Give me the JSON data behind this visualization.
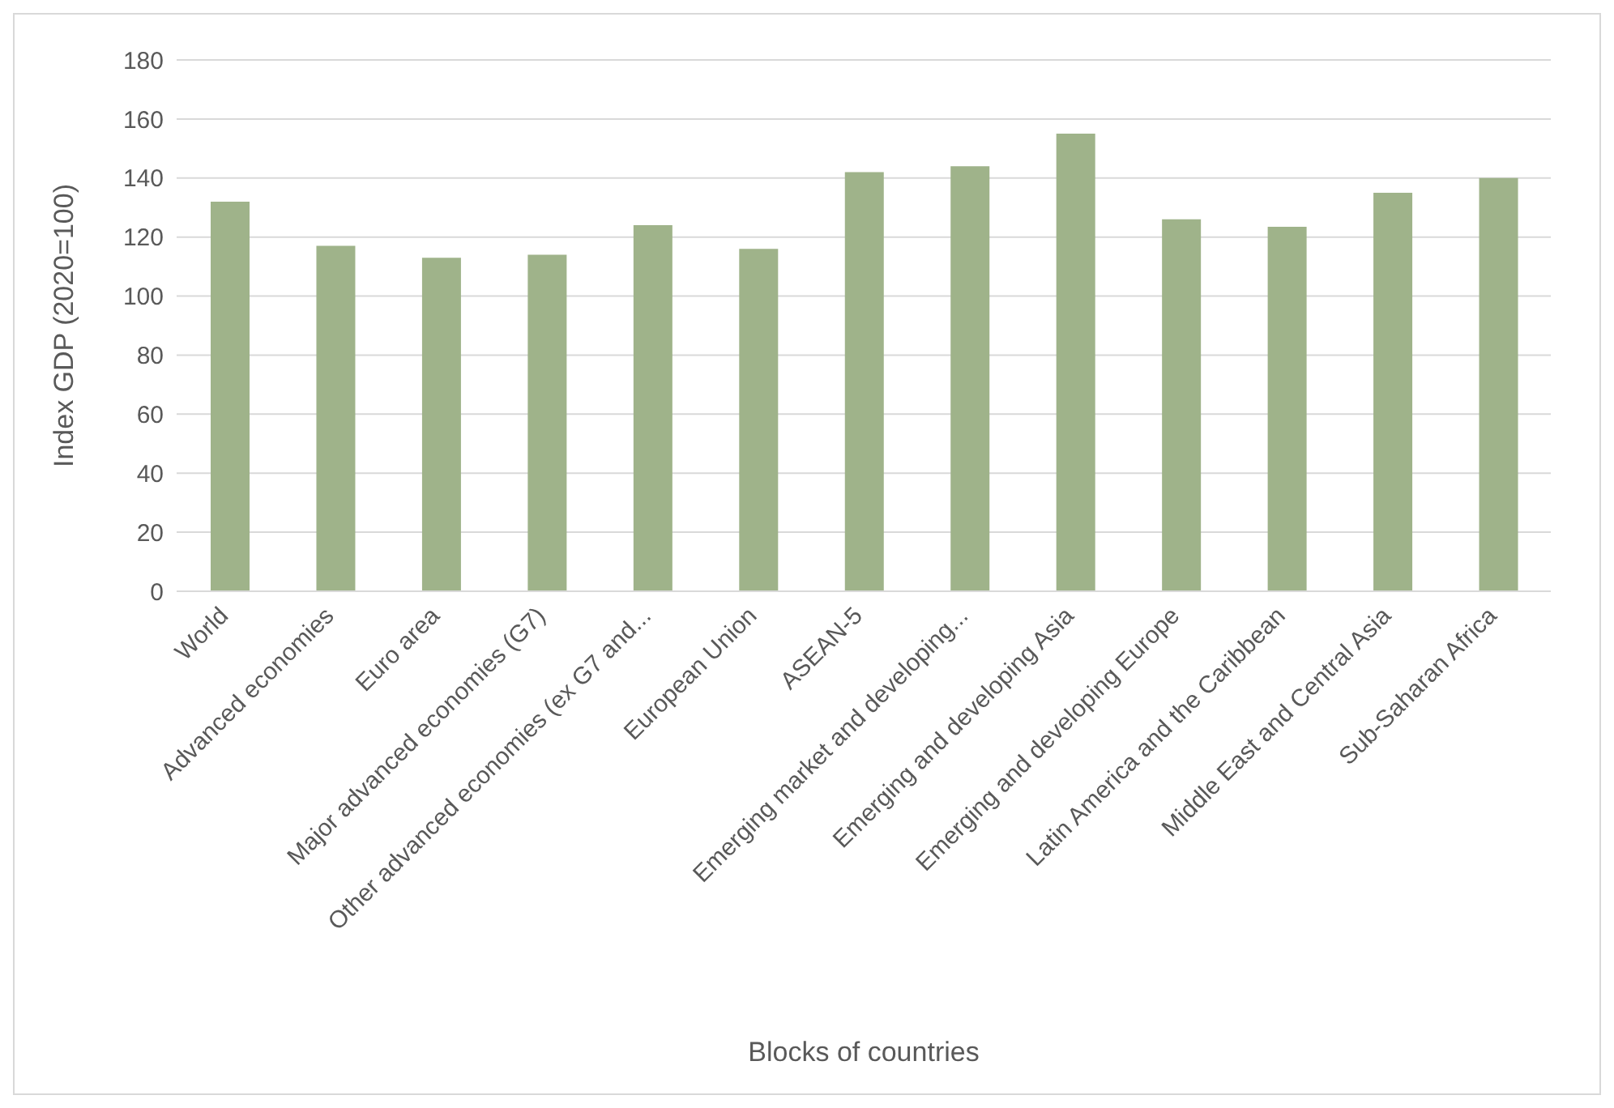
{
  "chart_data": {
    "type": "bar",
    "xlabel": "Blocks of countries",
    "ylabel": "Index GDP (2020=100)",
    "categories": [
      "World",
      "Advanced economies",
      "Euro area",
      "Major advanced economies (G7)",
      "Other advanced economies (ex G7 and...",
      "European Union",
      "ASEAN-5",
      "Emerging market and developing...",
      "Emerging and developing Asia",
      "Emerging and developing Europe",
      "Latin America and the Caribbean",
      "Middle East and Central Asia",
      "Sub-Saharan Africa"
    ],
    "values": [
      132,
      117,
      113,
      114,
      124,
      116,
      142,
      144,
      155,
      126,
      123.5,
      135,
      140
    ],
    "color": "#9fb38a",
    "ylim": [
      0,
      180
    ],
    "yticks": [
      0,
      20,
      40,
      60,
      80,
      100,
      120,
      140,
      160,
      180
    ],
    "grid": "y"
  }
}
